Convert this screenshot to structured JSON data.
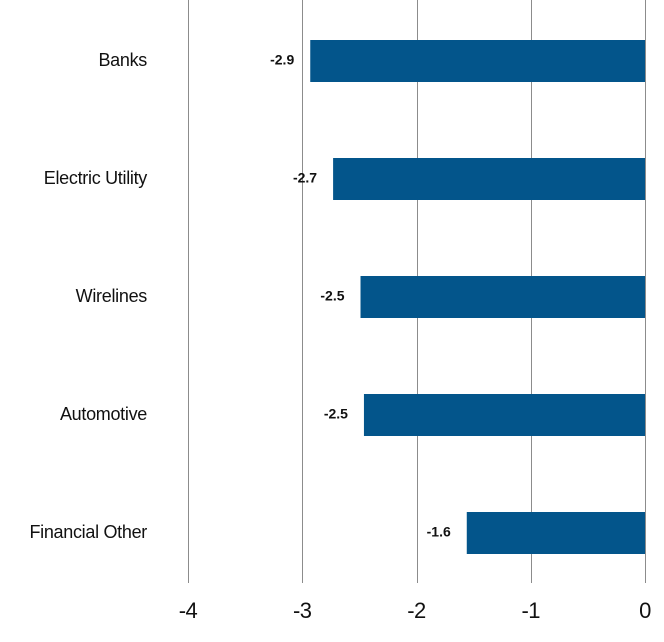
{
  "chart_data": {
    "type": "bar",
    "orientation": "horizontal",
    "categories": [
      "Banks",
      "Electric Utility",
      "Wirelines",
      "Automotive",
      "Financial Other"
    ],
    "series": [
      {
        "values": [
          -2.93,
          -2.73,
          -2.49,
          -2.46,
          -1.56
        ]
      }
    ],
    "data_labels": [
      "-2.9",
      "-2.7",
      "-2.5",
      "-2.5",
      "-1.6"
    ],
    "xlim": [
      -4,
      0
    ],
    "x_ticks": [
      -4,
      -3,
      -2,
      -1,
      0
    ],
    "x_tick_labels": [
      "-4",
      "-3",
      "-2",
      "-1",
      "0"
    ],
    "title": "",
    "xlabel": "",
    "ylabel": "",
    "grid": "vertical",
    "legend": "none",
    "colors": {
      "bar": "#03558b",
      "gridline": "#8c8c8c"
    }
  }
}
